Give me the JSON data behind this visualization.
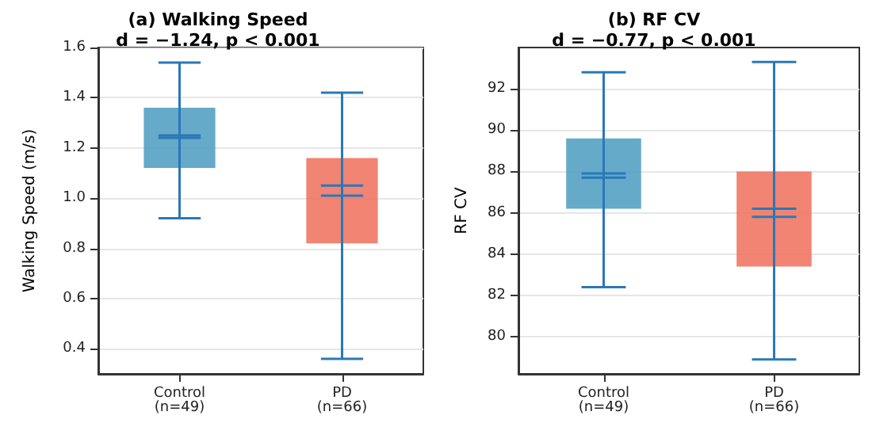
{
  "chart_data": [
    {
      "type": "box",
      "title": "(a) Walking Speed",
      "subtitle": "d = −1.24, p < 0.001",
      "ylabel": "Walking Speed (m/s)",
      "categories": [
        "Control\n(n=49)",
        "PD\n(n=66)"
      ],
      "colors": [
        "#4a9bc0",
        "#ee6e5a"
      ],
      "boxes": [
        {
          "low": 0.92,
          "q1": 1.12,
          "median": 1.25,
          "q3": 1.36,
          "high": 1.54,
          "mean": 1.24
        },
        {
          "low": 0.36,
          "q1": 0.82,
          "median": 1.05,
          "q3": 1.16,
          "high": 1.42,
          "mean": 1.01
        }
      ],
      "ylim": [
        0.3,
        1.6
      ],
      "yticks": [
        0.4,
        0.6,
        0.8,
        {
          "value": 1,
          "label": "1.0"
        },
        1.2,
        1.4,
        1.6
      ],
      "grid": "y"
    },
    {
      "type": "box",
      "title": "(b) RF CV",
      "subtitle": "d = −0.77, p < 0.001",
      "ylabel": "RF CV",
      "categories": [
        "Control\n(n=49)",
        "PD\n(n=66)"
      ],
      "colors": [
        "#4a9bc0",
        "#ee6e5a"
      ],
      "boxes": [
        {
          "low": 82.4,
          "q1": 86.2,
          "median": 87.7,
          "q3": 89.6,
          "high": 92.8,
          "mean": 87.9
        },
        {
          "low": 78.9,
          "q1": 83.4,
          "median": 86.2,
          "q3": 88.0,
          "high": 93.3,
          "mean": 85.8
        }
      ],
      "ylim": [
        78.2,
        94.0
      ],
      "yticks": [
        80,
        82,
        84,
        86,
        88,
        90,
        92
      ],
      "grid": "y"
    }
  ]
}
